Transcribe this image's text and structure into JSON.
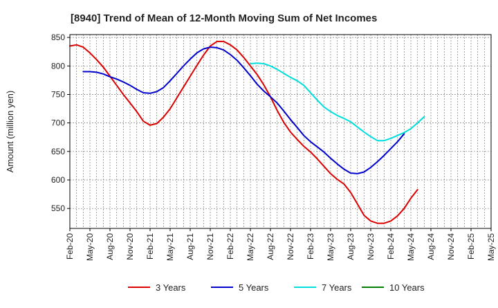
{
  "chart_data": {
    "type": "line",
    "title": "[8940]  Trend of Mean of 12-Month Moving Sum of Net Incomes",
    "xlabel": "",
    "ylabel": "Amount (million yen)",
    "ylim": [
      515,
      855
    ],
    "yticks": [
      550,
      600,
      650,
      700,
      750,
      800,
      850
    ],
    "ytick_labels": [
      "550",
      "600",
      "650",
      "700",
      "750",
      "800",
      "850"
    ],
    "xlim": [
      0,
      63
    ],
    "xticks": [
      0,
      3,
      6,
      9,
      12,
      15,
      18,
      21,
      24,
      27,
      30,
      33,
      36,
      39,
      42,
      45,
      48,
      51,
      54,
      57,
      60,
      63
    ],
    "xtick_labels": [
      "Feb-20",
      "May-20",
      "Aug-20",
      "Nov-20",
      "Feb-21",
      "May-21",
      "Aug-21",
      "Nov-21",
      "Feb-22",
      "May-22",
      "Aug-22",
      "Nov-22",
      "Feb-23",
      "May-23",
      "Aug-23",
      "Nov-23",
      "Feb-24",
      "May-24",
      "Aug-24",
      "Nov-24",
      "Feb-25",
      "May-25"
    ],
    "grid": true,
    "legend_position": "bottom",
    "series": [
      {
        "name": "3 Years",
        "color": "#dd0000",
        "points": [
          [
            0,
            835
          ],
          [
            1,
            837
          ],
          [
            2,
            833
          ],
          [
            3,
            823
          ],
          [
            4,
            811
          ],
          [
            5,
            798
          ],
          [
            6,
            782
          ],
          [
            7,
            766
          ],
          [
            8,
            750
          ],
          [
            9,
            735
          ],
          [
            10,
            720
          ],
          [
            11,
            703
          ],
          [
            12,
            696
          ],
          [
            13,
            699
          ],
          [
            14,
            710
          ],
          [
            15,
            725
          ],
          [
            16,
            744
          ],
          [
            17,
            763
          ],
          [
            18,
            782
          ],
          [
            19,
            801
          ],
          [
            20,
            819
          ],
          [
            21,
            835
          ],
          [
            22,
            843
          ],
          [
            23,
            843
          ],
          [
            24,
            837
          ],
          [
            25,
            828
          ],
          [
            26,
            815
          ],
          [
            27,
            800
          ],
          [
            28,
            785
          ],
          [
            29,
            767
          ],
          [
            30,
            746
          ],
          [
            31,
            722
          ],
          [
            32,
            701
          ],
          [
            33,
            684
          ],
          [
            34,
            671
          ],
          [
            35,
            659
          ],
          [
            36,
            649
          ],
          [
            37,
            637
          ],
          [
            38,
            624
          ],
          [
            39,
            611
          ],
          [
            40,
            601
          ],
          [
            41,
            593
          ],
          [
            42,
            578
          ],
          [
            43,
            558
          ],
          [
            44,
            538
          ],
          [
            45,
            528
          ],
          [
            46,
            524
          ],
          [
            47,
            524
          ],
          [
            48,
            528
          ],
          [
            49,
            537
          ],
          [
            50,
            550
          ],
          [
            51,
            568
          ],
          [
            52,
            583
          ]
        ]
      },
      {
        "name": "5 Years",
        "color": "#0000cc",
        "points": [
          [
            2,
            790
          ],
          [
            3,
            790
          ],
          [
            4,
            789
          ],
          [
            5,
            786
          ],
          [
            6,
            781
          ],
          [
            7,
            777
          ],
          [
            8,
            772
          ],
          [
            9,
            766
          ],
          [
            10,
            759
          ],
          [
            11,
            753
          ],
          [
            12,
            752
          ],
          [
            13,
            755
          ],
          [
            14,
            762
          ],
          [
            15,
            774
          ],
          [
            16,
            787
          ],
          [
            17,
            800
          ],
          [
            18,
            812
          ],
          [
            19,
            823
          ],
          [
            20,
            830
          ],
          [
            21,
            833
          ],
          [
            22,
            832
          ],
          [
            23,
            828
          ],
          [
            24,
            820
          ],
          [
            25,
            810
          ],
          [
            26,
            797
          ],
          [
            27,
            783
          ],
          [
            28,
            768
          ],
          [
            29,
            756
          ],
          [
            30,
            746
          ],
          [
            31,
            735
          ],
          [
            32,
            721
          ],
          [
            33,
            706
          ],
          [
            34,
            692
          ],
          [
            35,
            678
          ],
          [
            36,
            667
          ],
          [
            37,
            658
          ],
          [
            38,
            649
          ],
          [
            39,
            638
          ],
          [
            40,
            628
          ],
          [
            41,
            619
          ],
          [
            42,
            612
          ],
          [
            43,
            611
          ],
          [
            44,
            614
          ],
          [
            45,
            622
          ],
          [
            46,
            632
          ],
          [
            47,
            643
          ],
          [
            48,
            655
          ],
          [
            49,
            667
          ],
          [
            50,
            681
          ]
        ]
      },
      {
        "name": "7 Years",
        "color": "#00dddd",
        "points": [
          [
            27,
            804
          ],
          [
            28,
            805
          ],
          [
            29,
            804
          ],
          [
            30,
            800
          ],
          [
            31,
            794
          ],
          [
            32,
            787
          ],
          [
            33,
            780
          ],
          [
            34,
            774
          ],
          [
            35,
            766
          ],
          [
            36,
            753
          ],
          [
            37,
            740
          ],
          [
            38,
            728
          ],
          [
            39,
            720
          ],
          [
            40,
            713
          ],
          [
            41,
            708
          ],
          [
            42,
            702
          ],
          [
            43,
            693
          ],
          [
            44,
            684
          ],
          [
            45,
            676
          ],
          [
            46,
            669
          ],
          [
            47,
            669
          ],
          [
            48,
            673
          ],
          [
            49,
            678
          ],
          [
            50,
            683
          ],
          [
            51,
            690
          ],
          [
            52,
            700
          ],
          [
            53,
            711
          ]
        ]
      },
      {
        "name": "10 Years",
        "color": "#008000",
        "points": []
      }
    ]
  }
}
